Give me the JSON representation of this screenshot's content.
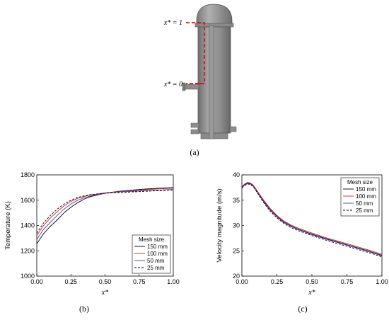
{
  "panel_a": {
    "caption": "(a)",
    "label_top": "x* = 1",
    "label_bottom": "x* = 0"
  },
  "chart_data": [
    {
      "id": "b",
      "type": "line",
      "caption": "(b)",
      "xlabel": "x*",
      "ylabel": "Temperature (K)",
      "xlim": [
        0,
        1
      ],
      "ylim": [
        1000,
        1800
      ],
      "xticks": [
        "0.00",
        "0.25",
        "0.50",
        "0.75",
        "1.00"
      ],
      "yticks": [
        "1000",
        "1200",
        "1400",
        "1600",
        "1800"
      ],
      "legend_title": "Mesh size",
      "legend_position": "bottom-right",
      "series": [
        {
          "name": "150 mm",
          "color": "#000000",
          "dash": "solid",
          "x": [
            0,
            0.05,
            0.1,
            0.15,
            0.2,
            0.25,
            0.3,
            0.35,
            0.4,
            0.5,
            0.6,
            0.7,
            0.8,
            0.9,
            1.0
          ],
          "y": [
            1255,
            1335,
            1395,
            1445,
            1500,
            1545,
            1580,
            1610,
            1630,
            1655,
            1670,
            1680,
            1688,
            1695,
            1700
          ]
        },
        {
          "name": "100 mm",
          "color": "#d62020",
          "dash": "solid",
          "x": [
            0,
            0.05,
            0.1,
            0.15,
            0.2,
            0.25,
            0.3,
            0.35,
            0.4,
            0.5,
            0.6,
            0.7,
            0.8,
            0.9,
            1.0
          ],
          "y": [
            1320,
            1400,
            1460,
            1510,
            1555,
            1590,
            1615,
            1630,
            1642,
            1658,
            1668,
            1676,
            1683,
            1690,
            1695
          ]
        },
        {
          "name": "50 mm",
          "color": "#4040c0",
          "dash": "solid",
          "x": [
            0,
            0.05,
            0.1,
            0.15,
            0.2,
            0.25,
            0.3,
            0.35,
            0.4,
            0.5,
            0.6,
            0.7,
            0.8,
            0.9,
            1.0
          ],
          "y": [
            1290,
            1370,
            1425,
            1480,
            1530,
            1570,
            1600,
            1620,
            1635,
            1655,
            1665,
            1670,
            1675,
            1680,
            1685
          ]
        },
        {
          "name": "25 mm",
          "color": "#000000",
          "dash": "dashed",
          "x": [
            0,
            0.05,
            0.1,
            0.15,
            0.2,
            0.25,
            0.3,
            0.35,
            0.4,
            0.5,
            0.6,
            0.7,
            0.8,
            0.9,
            1.0
          ],
          "y": [
            1340,
            1420,
            1480,
            1530,
            1570,
            1600,
            1622,
            1635,
            1645,
            1655,
            1660,
            1665,
            1670,
            1675,
            1680
          ]
        }
      ]
    },
    {
      "id": "c",
      "type": "line",
      "caption": "(c)",
      "xlabel": "x*",
      "ylabel": "Velocity magnitude (m/s)",
      "xlim": [
        0,
        1
      ],
      "ylim": [
        20,
        40
      ],
      "xticks": [
        "0.00",
        "0.25",
        "0.50",
        "0.75",
        "1.00"
      ],
      "yticks": [
        "20",
        "25",
        "30",
        "35",
        "40"
      ],
      "legend_title": "Mesh size",
      "legend_position": "top-right",
      "series": [
        {
          "name": "150 mm",
          "color": "#000000",
          "dash": "solid",
          "x": [
            0,
            0.02,
            0.04,
            0.06,
            0.08,
            0.1,
            0.15,
            0.2,
            0.25,
            0.3,
            0.35,
            0.4,
            0.5,
            0.6,
            0.7,
            0.8,
            0.9,
            1.0
          ],
          "y": [
            37.6,
            38.1,
            38.4,
            38.3,
            37.9,
            37.1,
            35.0,
            33.2,
            31.8,
            30.7,
            29.9,
            29.3,
            28.3,
            27.4,
            26.6,
            25.8,
            25.0,
            24.1
          ]
        },
        {
          "name": "100 mm",
          "color": "#d62020",
          "dash": "solid",
          "x": [
            0,
            0.02,
            0.04,
            0.06,
            0.08,
            0.1,
            0.15,
            0.2,
            0.25,
            0.3,
            0.35,
            0.4,
            0.5,
            0.6,
            0.7,
            0.8,
            0.9,
            1.0
          ],
          "y": [
            37.7,
            38.2,
            38.5,
            38.4,
            38.0,
            37.2,
            35.2,
            33.4,
            32.0,
            30.9,
            30.1,
            29.5,
            28.5,
            27.6,
            26.8,
            26.0,
            25.2,
            24.3
          ]
        },
        {
          "name": "50 mm",
          "color": "#4040c0",
          "dash": "solid",
          "x": [
            0,
            0.02,
            0.04,
            0.06,
            0.08,
            0.1,
            0.15,
            0.2,
            0.25,
            0.3,
            0.35,
            0.4,
            0.5,
            0.6,
            0.7,
            0.8,
            0.9,
            1.0
          ],
          "y": [
            37.5,
            38.0,
            38.3,
            38.2,
            37.8,
            37.0,
            34.9,
            33.1,
            31.7,
            30.6,
            29.8,
            29.2,
            28.2,
            27.3,
            26.5,
            25.7,
            24.9,
            24.0
          ]
        },
        {
          "name": "25 mm",
          "color": "#000000",
          "dash": "dashed",
          "x": [
            0,
            0.02,
            0.04,
            0.06,
            0.08,
            0.1,
            0.15,
            0.2,
            0.25,
            0.3,
            0.35,
            0.4,
            0.5,
            0.6,
            0.7,
            0.8,
            0.9,
            1.0
          ],
          "y": [
            37.4,
            37.9,
            38.2,
            38.1,
            37.7,
            36.9,
            34.7,
            32.9,
            31.5,
            30.4,
            29.6,
            29.0,
            28.0,
            27.1,
            26.3,
            25.5,
            24.7,
            23.8
          ]
        }
      ]
    }
  ]
}
